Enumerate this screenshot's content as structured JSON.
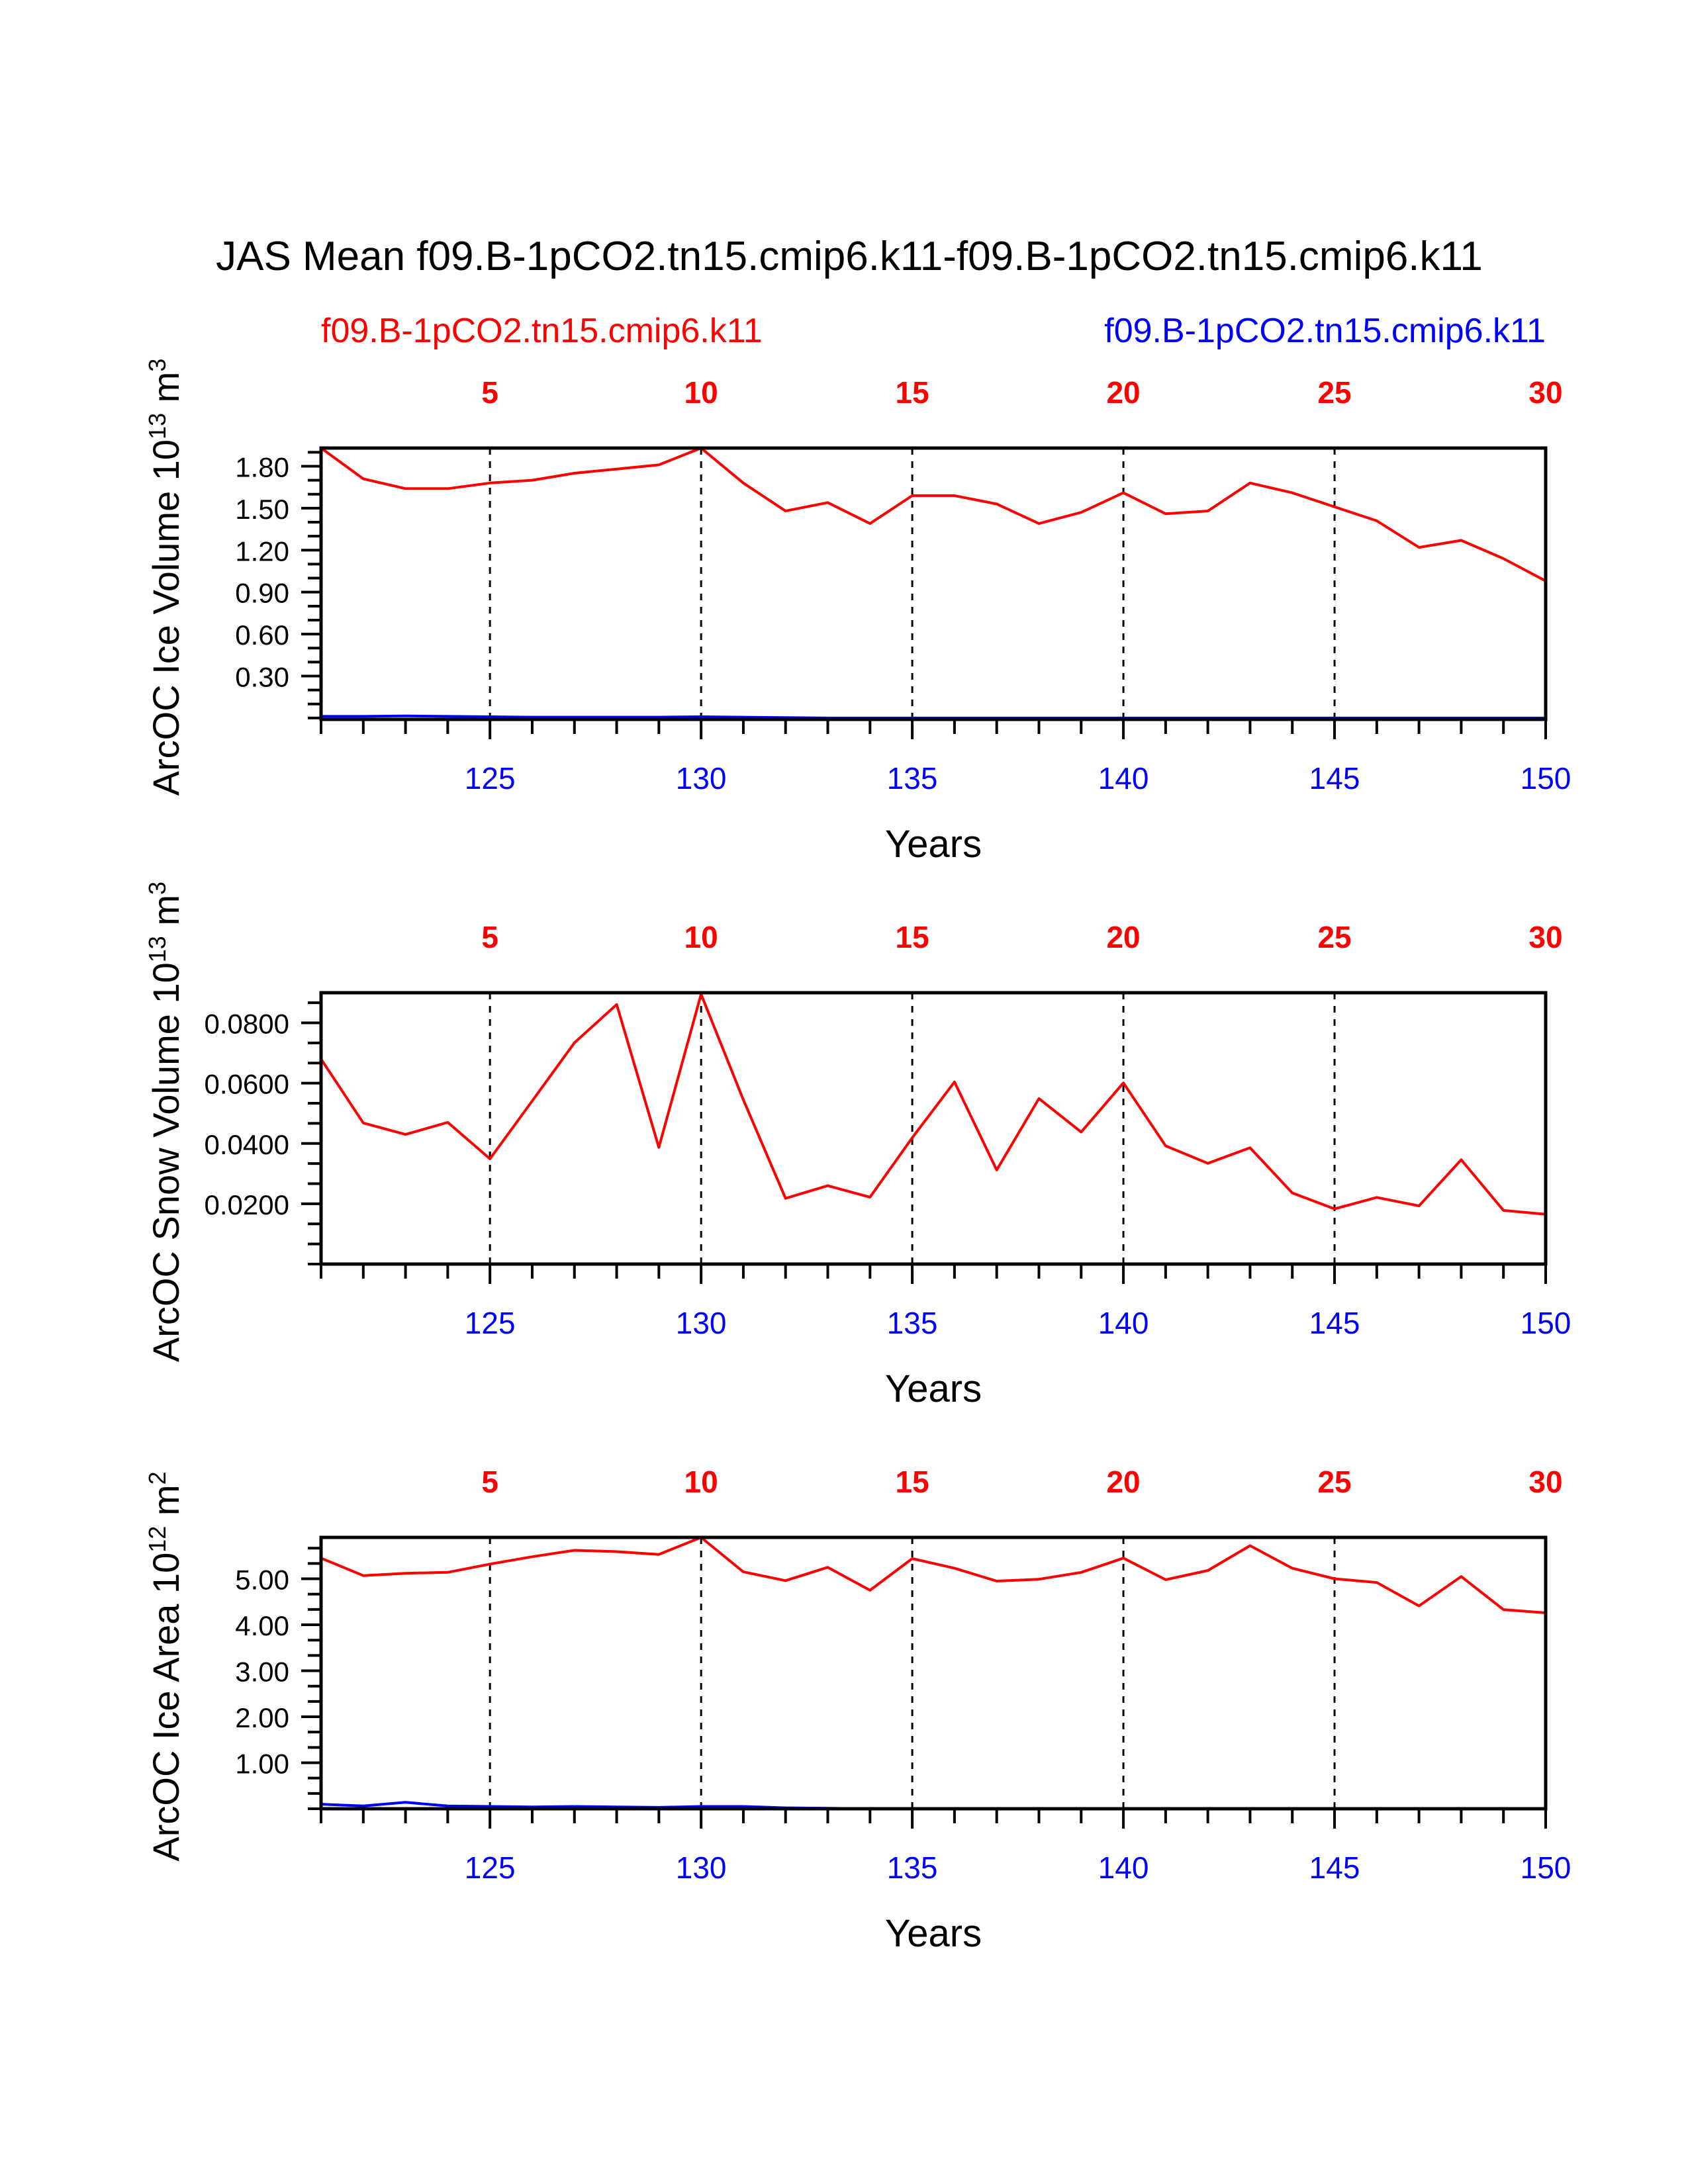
{
  "title": "JAS Mean f09.B-1pCO2.tn15.cmip6.k11-f09.B-1pCO2.tn15.cmip6.k11",
  "legend": {
    "left": "f09.B-1pCO2.tn15.cmip6.k11",
    "right": "f09.B-1pCO2.tn15.cmip6.k11"
  },
  "colors": {
    "red": "#ff0000",
    "blue": "#0000ff",
    "black": "#000000"
  },
  "chart_data": [
    {
      "type": "line",
      "ylabel_prefix": "ArcOC Ice Volume 10",
      "ylabel_exp": "13",
      "ylabel_unit": " m",
      "ylabel_unit_exp": "3",
      "xlabel": "Years",
      "x": [
        121,
        122,
        123,
        124,
        125,
        126,
        127,
        128,
        129,
        130,
        131,
        132,
        133,
        134,
        135,
        136,
        137,
        138,
        139,
        140,
        141,
        142,
        143,
        144,
        145,
        146,
        147,
        148,
        149,
        150
      ],
      "xlim": [
        121,
        150
      ],
      "ylim": [
        -0.01,
        1.93
      ],
      "yticks": [
        0.3,
        0.6,
        0.9,
        1.2,
        1.5,
        1.8
      ],
      "ytick_labels": [
        "0.30",
        "0.60",
        "0.90",
        "1.20",
        "1.50",
        "1.80"
      ],
      "bottom_ticks": [
        125,
        130,
        135,
        140,
        145,
        150
      ],
      "bottom_tick_labels": [
        "125",
        "130",
        "135",
        "140",
        "145",
        "150"
      ],
      "top_ticks": [
        5,
        10,
        15,
        20,
        25,
        30
      ],
      "top_tick_labels": [
        "5",
        "10",
        "15",
        "20",
        "25",
        "30"
      ],
      "series": [
        {
          "name": "f09.B-1pCO2.tn15.cmip6.k11",
          "color": "#ff0000",
          "values": [
            1.93,
            1.71,
            1.64,
            1.64,
            1.68,
            1.7,
            1.75,
            1.78,
            1.81,
            1.93,
            1.68,
            1.48,
            1.54,
            1.39,
            1.59,
            1.59,
            1.53,
            1.39,
            1.47,
            1.61,
            1.46,
            1.48,
            1.68,
            1.61,
            1.51,
            1.41,
            1.22,
            1.27,
            1.14,
            0.98
          ]
        },
        {
          "name": "f09.B-1pCO2.tn15.cmip6.k11",
          "color": "#0000ff",
          "values": [
            0.012,
            0.012,
            0.015,
            0.012,
            0.009,
            0.006,
            0.006,
            0.006,
            0.006,
            0.009,
            0.006,
            0.003,
            0.0,
            0.0,
            0.0,
            0.0,
            0.0,
            0.0,
            0.0,
            0.0,
            0.0,
            0.0,
            0.0,
            0.0,
            0.0,
            0.0,
            0.0,
            0.0,
            0.0,
            0.0
          ]
        }
      ]
    },
    {
      "type": "line",
      "ylabel_prefix": "ArcOC Snow Volume 10",
      "ylabel_exp": "13",
      "ylabel_unit": " m",
      "ylabel_unit_exp": "3",
      "xlabel": "Years",
      "x": [
        121,
        122,
        123,
        124,
        125,
        126,
        127,
        128,
        129,
        130,
        131,
        132,
        133,
        134,
        135,
        136,
        137,
        138,
        139,
        140,
        141,
        142,
        143,
        144,
        145,
        146,
        147,
        148,
        149,
        150
      ],
      "xlim": [
        121,
        150
      ],
      "ylim": [
        0.0,
        0.09
      ],
      "yticks": [
        0.02,
        0.04,
        0.06,
        0.08
      ],
      "ytick_labels": [
        "0.0200",
        "0.0400",
        "0.0600",
        "0.0800"
      ],
      "bottom_ticks": [
        125,
        130,
        135,
        140,
        145,
        150
      ],
      "bottom_tick_labels": [
        "125",
        "130",
        "135",
        "140",
        "145",
        "150"
      ],
      "top_ticks": [
        5,
        10,
        15,
        20,
        25,
        30
      ],
      "top_tick_labels": [
        "5",
        "10",
        "15",
        "20",
        "25",
        "30"
      ],
      "series": [
        {
          "name": "f09.B-1pCO2.tn15.cmip6.k11",
          "color": "#ff0000",
          "values": [
            0.068,
            0.0468,
            0.043,
            0.047,
            0.0349,
            0.0541,
            0.0734,
            0.0861,
            0.0387,
            0.0895,
            0.0545,
            0.0218,
            0.026,
            0.0222,
            0.0419,
            0.0604,
            0.0312,
            0.0549,
            0.0438,
            0.0601,
            0.0392,
            0.0334,
            0.0386,
            0.0236,
            0.0183,
            0.0221,
            0.0193,
            0.0346,
            0.0178,
            0.0165
          ]
        },
        {
          "name": "f09.B-1pCO2.tn15.cmip6.k11",
          "color": "#0000ff",
          "values": [
            0.0,
            0.0,
            0.0,
            0.0,
            0.0,
            0.0,
            0.0,
            0.0,
            0.0,
            0.0,
            0.0,
            0.0,
            0.0,
            0.0,
            0.0,
            0.0,
            0.0,
            0.0,
            0.0,
            0.0,
            0.0,
            0.0,
            0.0,
            0.0,
            0.0,
            0.0,
            0.0,
            0.0,
            0.0,
            0.0
          ]
        }
      ]
    },
    {
      "type": "line",
      "ylabel_prefix": "ArcOC Ice Area 10",
      "ylabel_exp": "12",
      "ylabel_unit": " m",
      "ylabel_unit_exp": "2",
      "xlabel": "Years",
      "x": [
        121,
        122,
        123,
        124,
        125,
        126,
        127,
        128,
        129,
        130,
        131,
        132,
        133,
        134,
        135,
        136,
        137,
        138,
        139,
        140,
        141,
        142,
        143,
        144,
        145,
        146,
        147,
        148,
        149,
        150
      ],
      "xlim": [
        121,
        150
      ],
      "ylim": [
        0.0,
        5.9
      ],
      "yticks": [
        1.0,
        2.0,
        3.0,
        4.0,
        5.0
      ],
      "ytick_labels": [
        "1.00",
        "2.00",
        "3.00",
        "4.00",
        "5.00"
      ],
      "bottom_ticks": [
        125,
        130,
        135,
        140,
        145,
        150
      ],
      "bottom_tick_labels": [
        "125",
        "130",
        "135",
        "140",
        "145",
        "150"
      ],
      "top_ticks": [
        5,
        10,
        15,
        20,
        25,
        30
      ],
      "top_tick_labels": [
        "5",
        "10",
        "15",
        "20",
        "25",
        "30"
      ],
      "series": [
        {
          "name": "f09.B-1pCO2.tn15.cmip6.k11",
          "color": "#ff0000",
          "values": [
            5.45,
            5.07,
            5.12,
            5.14,
            5.32,
            5.48,
            5.62,
            5.59,
            5.53,
            5.9,
            5.15,
            4.96,
            5.25,
            4.75,
            5.44,
            5.23,
            4.95,
            4.99,
            5.14,
            5.45,
            4.98,
            5.18,
            5.72,
            5.23,
            5.0,
            4.92,
            4.41,
            5.05,
            4.33,
            4.26
          ]
        },
        {
          "name": "f09.B-1pCO2.tn15.cmip6.k11",
          "color": "#0000ff",
          "values": [
            0.1,
            0.06,
            0.14,
            0.06,
            0.05,
            0.04,
            0.05,
            0.04,
            0.03,
            0.05,
            0.05,
            0.02,
            0.01,
            0.0,
            0.0,
            0.0,
            0.0,
            0.0,
            0.0,
            0.0,
            0.0,
            0.0,
            0.0,
            0.0,
            0.0,
            0.0,
            0.0,
            0.0,
            0.0,
            0.0
          ]
        }
      ]
    }
  ]
}
